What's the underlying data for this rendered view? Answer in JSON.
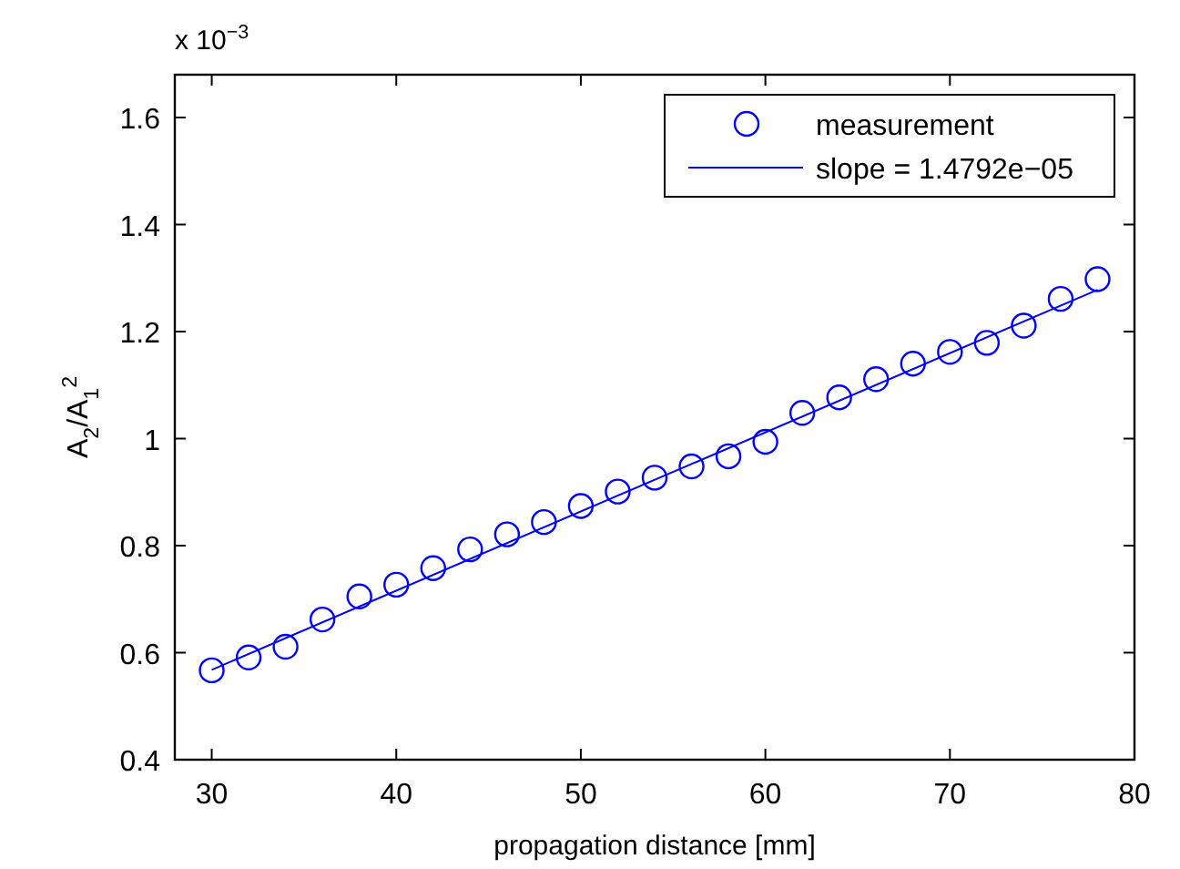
{
  "chart_data": {
    "type": "scatter",
    "xlabel": "propagation distance [mm]",
    "ylabel": "A$_{2}$/A$_{1}$$^{2}$",
    "annotations": [
      "x 10$^{−3}$"
    ],
    "xlim": [
      28,
      80
    ],
    "xticks": [
      30,
      40,
      50,
      60,
      70,
      80
    ],
    "ylim": [
      0.4,
      1.68
    ],
    "yticks": [
      0.4,
      0.6,
      0.8,
      {
        "value": 1,
        "label": "1"
      },
      1.2,
      1.4,
      1.6
    ],
    "grid": false,
    "legend": "top right",
    "marker": "circle",
    "series": [
      {
        "name": "measurement",
        "color": "#0000ff",
        "x": [
          30,
          32,
          34,
          36,
          38,
          40,
          42,
          44,
          46,
          48,
          50,
          52,
          54,
          56,
          58,
          60,
          62,
          64,
          66,
          68,
          70,
          72,
          74,
          76,
          78
        ],
        "values": [
          0.567,
          0.591,
          0.611,
          0.662,
          0.705,
          0.727,
          0.758,
          0.793,
          0.821,
          0.844,
          0.874,
          0.901,
          0.927,
          0.948,
          0.967,
          0.994,
          1.048,
          1.077,
          1.111,
          1.14,
          1.162,
          1.179,
          1.211,
          1.261,
          1.298
        ]
      },
      {
        "name": "slope = 1.4792e−05",
        "type": "line",
        "color": "#0000ff",
        "marker": "none",
        "line_style": "solid",
        "x": [
          30,
          78
        ],
        "values": [
          0.568,
          1.278
        ]
      }
    ]
  }
}
